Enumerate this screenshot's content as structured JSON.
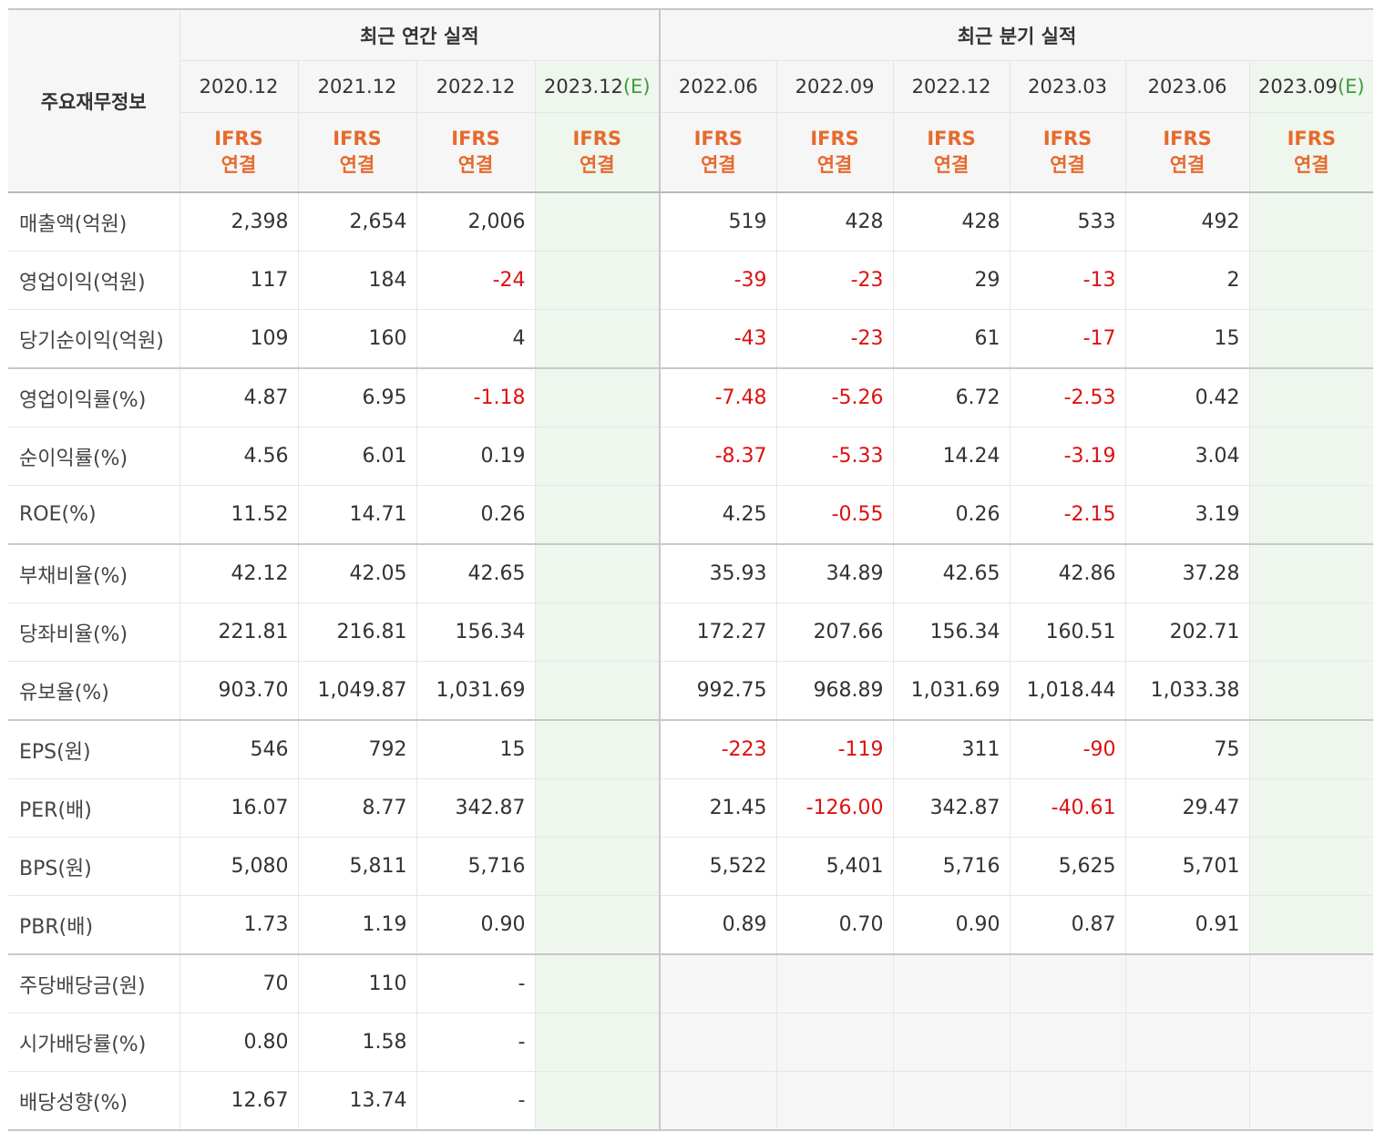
{
  "table": {
    "corner_label": "주요재무정보",
    "annual_group_label": "최근 연간 실적",
    "quarterly_group_label": "최근 분기 실적",
    "basis": [
      "IFRS",
      "연결"
    ],
    "estimate_marker": "(E)",
    "annual_periods": [
      "2020.12",
      "2021.12",
      "2022.12",
      "2023.12"
    ],
    "quarterly_periods": [
      "2022.06",
      "2022.09",
      "2022.12",
      "2023.03",
      "2023.06",
      "2023.09"
    ],
    "rows": [
      {
        "label": "매출액(억원)",
        "annual": [
          "2,398",
          "2,654",
          "2,006",
          ""
        ],
        "quarterly": [
          "519",
          "428",
          "428",
          "533",
          "492",
          ""
        ]
      },
      {
        "label": "영업이익(억원)",
        "annual": [
          "117",
          "184",
          "-24",
          ""
        ],
        "quarterly": [
          "-39",
          "-23",
          "29",
          "-13",
          "2",
          ""
        ]
      },
      {
        "label": "당기순이익(억원)",
        "annual": [
          "109",
          "160",
          "4",
          ""
        ],
        "quarterly": [
          "-43",
          "-23",
          "61",
          "-17",
          "15",
          ""
        ]
      },
      {
        "label": "영업이익률(%)",
        "annual": [
          "4.87",
          "6.95",
          "-1.18",
          ""
        ],
        "quarterly": [
          "-7.48",
          "-5.26",
          "6.72",
          "-2.53",
          "0.42",
          ""
        ]
      },
      {
        "label": "순이익률(%)",
        "annual": [
          "4.56",
          "6.01",
          "0.19",
          ""
        ],
        "quarterly": [
          "-8.37",
          "-5.33",
          "14.24",
          "-3.19",
          "3.04",
          ""
        ]
      },
      {
        "label": "ROE(%)",
        "annual": [
          "11.52",
          "14.71",
          "0.26",
          ""
        ],
        "quarterly": [
          "4.25",
          "-0.55",
          "0.26",
          "-2.15",
          "3.19",
          ""
        ]
      },
      {
        "label": "부채비율(%)",
        "annual": [
          "42.12",
          "42.05",
          "42.65",
          ""
        ],
        "quarterly": [
          "35.93",
          "34.89",
          "42.65",
          "42.86",
          "37.28",
          ""
        ]
      },
      {
        "label": "당좌비율(%)",
        "annual": [
          "221.81",
          "216.81",
          "156.34",
          ""
        ],
        "quarterly": [
          "172.27",
          "207.66",
          "156.34",
          "160.51",
          "202.71",
          ""
        ]
      },
      {
        "label": "유보율(%)",
        "annual": [
          "903.70",
          "1,049.87",
          "1,031.69",
          ""
        ],
        "quarterly": [
          "992.75",
          "968.89",
          "1,031.69",
          "1,018.44",
          "1,033.38",
          ""
        ]
      },
      {
        "label": "EPS(원)",
        "annual": [
          "546",
          "792",
          "15",
          ""
        ],
        "quarterly": [
          "-223",
          "-119",
          "311",
          "-90",
          "75",
          ""
        ]
      },
      {
        "label": "PER(배)",
        "annual": [
          "16.07",
          "8.77",
          "342.87",
          ""
        ],
        "quarterly": [
          "21.45",
          "-126.00",
          "342.87",
          "-40.61",
          "29.47",
          ""
        ]
      },
      {
        "label": "BPS(원)",
        "annual": [
          "5,080",
          "5,811",
          "5,716",
          ""
        ],
        "quarterly": [
          "5,522",
          "5,401",
          "5,716",
          "5,625",
          "5,701",
          ""
        ]
      },
      {
        "label": "PBR(배)",
        "annual": [
          "1.73",
          "1.19",
          "0.90",
          ""
        ],
        "quarterly": [
          "0.89",
          "0.70",
          "0.90",
          "0.87",
          "0.91",
          ""
        ]
      },
      {
        "label": "주당배당금(원)",
        "annual": [
          "70",
          "110",
          "-",
          ""
        ],
        "quarterly": null
      },
      {
        "label": "시가배당률(%)",
        "annual": [
          "0.80",
          "1.58",
          "-",
          ""
        ],
        "quarterly": null
      },
      {
        "label": "배당성향(%)",
        "annual": [
          "12.67",
          "13.74",
          "-",
          ""
        ],
        "quarterly": null
      }
    ],
    "colors": {
      "negative": "#dd1111",
      "basis_text": "#e66a2c",
      "estimate_marker": "#3e9a3e",
      "estimate_column_bg": "#eef6ee",
      "header_bg": "#f6f6f6"
    }
  }
}
